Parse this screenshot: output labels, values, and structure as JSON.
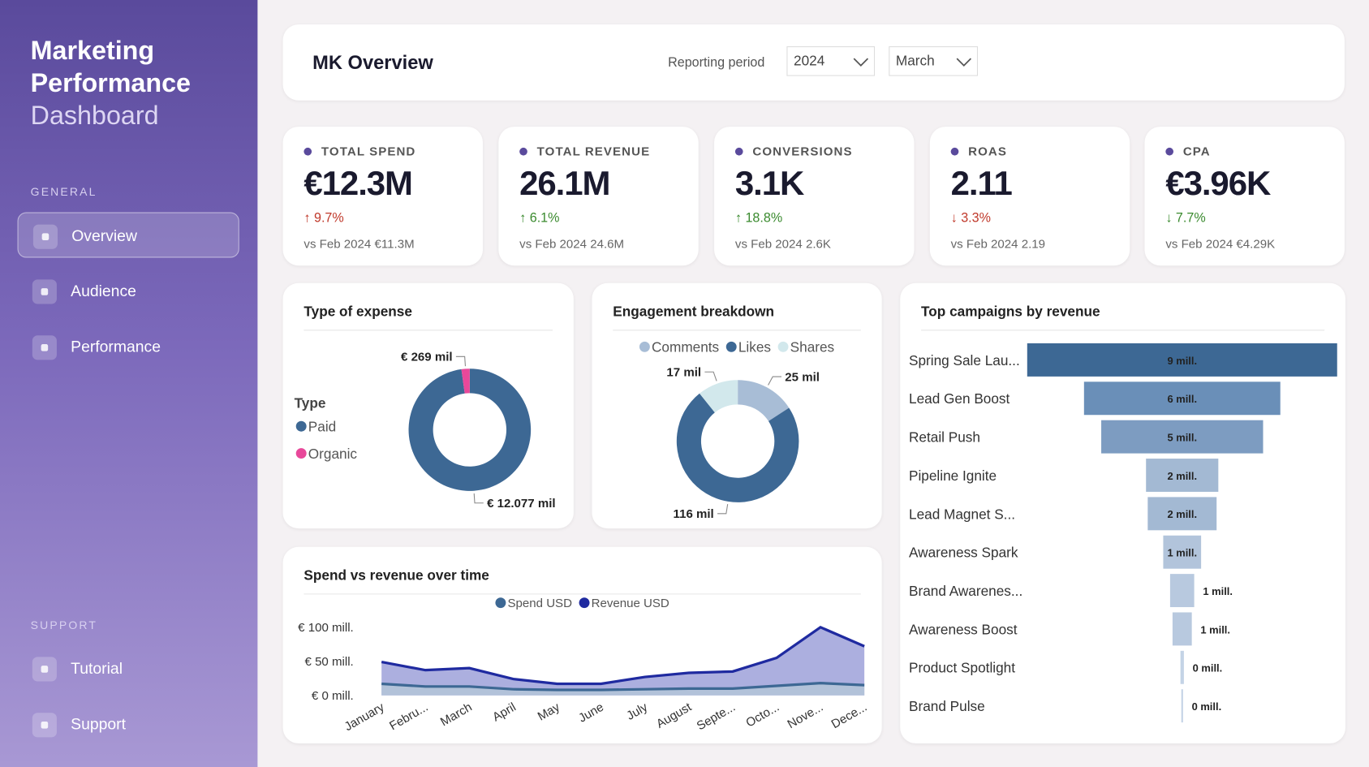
{
  "sidebar": {
    "title_lines": [
      "Marketing",
      "Performance"
    ],
    "subtitle": "Dashboard",
    "sections": [
      {
        "heading": "GENERAL",
        "items": [
          {
            "label": "Overview",
            "active": true
          },
          {
            "label": "Audience",
            "active": false
          },
          {
            "label": "Performance",
            "active": false
          }
        ]
      },
      {
        "heading": "SUPPORT",
        "items": [
          {
            "label": "Tutorial",
            "active": false
          },
          {
            "label": "Support",
            "active": false
          }
        ]
      }
    ]
  },
  "header": {
    "title": "MK Overview",
    "filter_label": "Reporting period",
    "filters": [
      "2024",
      "March"
    ]
  },
  "kpis": [
    {
      "label": "TOTAL SPEND",
      "value": "€12.3M",
      "change": "↑ 9.7%",
      "change_color": "#c0392b",
      "comparison": "vs Feb 2024 €11.3M"
    },
    {
      "label": "TOTAL REVENUE",
      "value": "26.1M",
      "change": "↑ 6.1%",
      "change_color": "#3a8a2e",
      "comparison": "vs Feb 2024 24.6M"
    },
    {
      "label": "CONVERSIONS",
      "value": "3.1K",
      "change": "↑ 18.8%",
      "change_color": "#3a8a2e",
      "comparison": "vs Feb 2024 2.6K"
    },
    {
      "label": "ROAS",
      "value": "2.11",
      "change": "↓ 3.3%",
      "change_color": "#c0392b",
      "comparison": "vs Feb 2024 2.19"
    },
    {
      "label": "CPA",
      "value": "€3.96K",
      "change": "↓ 7.7%",
      "change_color": "#3a8a2e",
      "comparison": "vs Feb 2024 €4.29K"
    }
  ],
  "chart_data": [
    {
      "type": "donut",
      "title": "Type of expense",
      "legend_title": "Type",
      "categories": [
        "Paid",
        "Organic"
      ],
      "values": [
        12077,
        269
      ],
      "value_labels": [
        "€ 12.077 mil",
        "€ 269 mil"
      ],
      "colors": [
        "#3d6894",
        "#e8489a"
      ]
    },
    {
      "type": "donut",
      "title": "Engagement breakdown",
      "categories": [
        "Comments",
        "Likes",
        "Shares"
      ],
      "values": [
        25,
        116,
        17
      ],
      "value_labels": [
        "25 mil",
        "116 mil",
        "17 mil"
      ],
      "colors": [
        "#a8bdd6",
        "#3d6894",
        "#d2e8ec"
      ]
    },
    {
      "type": "area",
      "title": "Spend vs revenue over time",
      "categories": [
        "January",
        "Febru...",
        "March",
        "April",
        "May",
        "June",
        "July",
        "August",
        "Septe...",
        "Octo...",
        "Nove...",
        "Dece..."
      ],
      "series": [
        {
          "name": "Spend USD",
          "color": "#3d6894",
          "fill": "#b3c4d8",
          "values": [
            17,
            13,
            13,
            9,
            8,
            8,
            9,
            10,
            10,
            14,
            18,
            15
          ]
        },
        {
          "name": "Revenue USD",
          "color": "#1f2aa0",
          "fill": "#a3a6dc",
          "values": [
            49,
            37,
            40,
            24,
            17,
            17,
            27,
            33,
            35,
            55,
            100,
            72
          ]
        }
      ],
      "ylim": [
        0,
        100
      ],
      "yticks": [
        {
          "value": 0,
          "label": "€ 0 mill."
        },
        {
          "value": 50,
          "label": "€ 50 mill."
        },
        {
          "value": 100,
          "label": "€ 100 mill."
        }
      ],
      "grid": false
    },
    {
      "type": "funnel",
      "title": "Top campaigns by revenue",
      "categories": [
        "Spring Sale Lau...",
        "Lead Gen Boost",
        "Retail Push",
        "Pipeline Ignite",
        "Lead Magnet S...",
        "Awareness Spark",
        "Brand Awarenes...",
        "Awareness Boost",
        "Product Spotlight",
        "Brand Pulse"
      ],
      "values": [
        9,
        5.7,
        4.7,
        2.1,
        2,
        1.1,
        0.7,
        0.56,
        0.1,
        0.05
      ],
      "value_labels": [
        "9 mill.",
        "6 mill.",
        "5 mill.",
        "2 mill.",
        "2 mill.",
        "1 mill.",
        "1 mill.",
        "1 mill.",
        "0 mill.",
        "0 mill."
      ],
      "colors": [
        "#3d6894",
        "#6a8fb8",
        "#7d9cc1",
        "#a3b9d3",
        "#a3b9d3",
        "#b2c4db",
        "#b8c9df",
        "#b8c9df",
        "#c4d3e6",
        "#c4d3e6"
      ],
      "xlim": [
        0,
        9
      ]
    }
  ]
}
